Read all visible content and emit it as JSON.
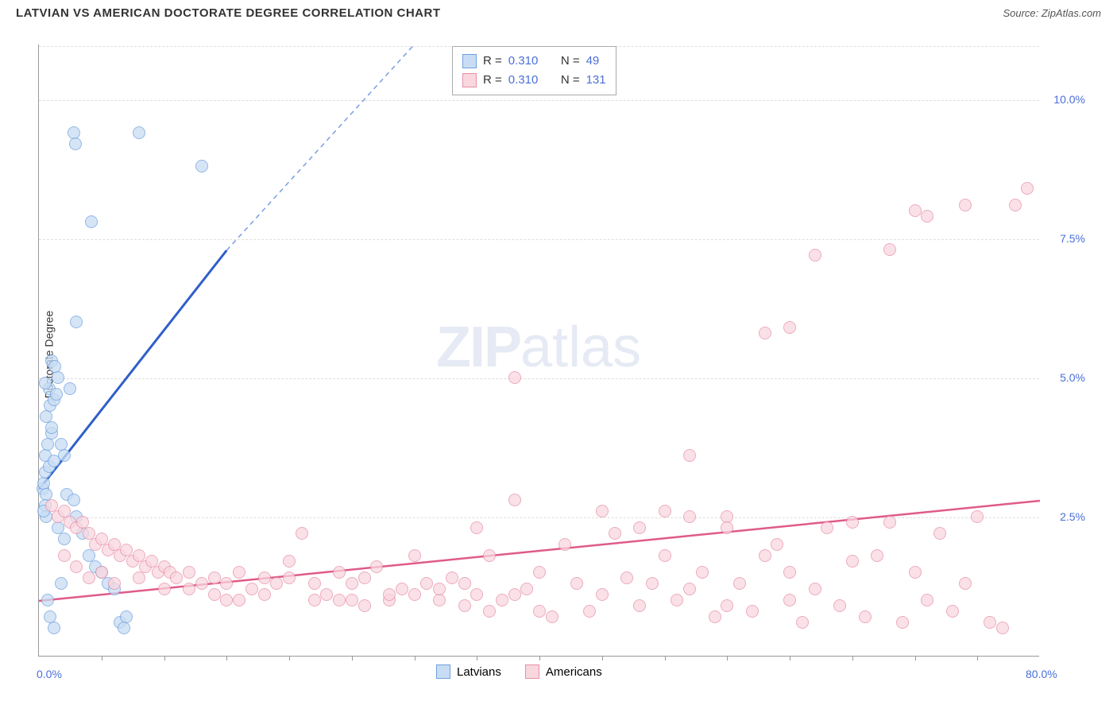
{
  "title": "LATVIAN VS AMERICAN DOCTORATE DEGREE CORRELATION CHART",
  "source": "Source: ZipAtlas.com",
  "watermark": "ZIPatlas",
  "chart": {
    "type": "scatter",
    "ylabel": "Doctorate Degree",
    "background_color": "#ffffff",
    "grid_color": "#dddddd",
    "x_axis": {
      "min": 0,
      "max": 80,
      "tick_start": 0,
      "tick_end": 80,
      "tick_step": 5,
      "label_min": "0.0%",
      "label_max": "80.0%"
    },
    "y_axis": {
      "min": 0,
      "max": 11,
      "ticks": [
        2.5,
        5.0,
        7.5,
        10.0
      ],
      "tick_labels": [
        "2.5%",
        "5.0%",
        "7.5%",
        "10.0%"
      ]
    },
    "series": [
      {
        "name": "Latvians",
        "marker_fill": "#c8ddf4",
        "marker_stroke": "#6fa0de",
        "marker_opacity": 0.75,
        "marker_radius": 8,
        "trend_color": "#2f5fc9",
        "trend_dash_color": "#7a9fe0",
        "trend": {
          "x1": 0,
          "y1": 3.0,
          "x2_solid": 15,
          "y2_solid": 7.3,
          "x2_dash": 30,
          "y2_dash": 11.0
        },
        "legend": {
          "R_label": "R =",
          "R": "0.310",
          "N_label": "N =",
          "N": "49"
        },
        "points": [
          [
            0.3,
            3.0
          ],
          [
            0.4,
            3.1
          ],
          [
            0.5,
            3.3
          ],
          [
            0.6,
            2.9
          ],
          [
            0.8,
            3.4
          ],
          [
            0.5,
            3.6
          ],
          [
            0.7,
            3.8
          ],
          [
            1.0,
            4.0
          ],
          [
            0.6,
            4.3
          ],
          [
            0.9,
            4.5
          ],
          [
            1.2,
            4.6
          ],
          [
            0.8,
            4.8
          ],
          [
            1.5,
            5.0
          ],
          [
            1.0,
            5.3
          ],
          [
            1.3,
            5.2
          ],
          [
            0.6,
            2.5
          ],
          [
            0.5,
            2.7
          ],
          [
            1.2,
            3.5
          ],
          [
            1.8,
            3.8
          ],
          [
            2.0,
            3.6
          ],
          [
            2.2,
            2.9
          ],
          [
            2.8,
            2.8
          ],
          [
            3.0,
            2.5
          ],
          [
            3.5,
            2.2
          ],
          [
            4.0,
            1.8
          ],
          [
            4.5,
            1.6
          ],
          [
            5.0,
            1.5
          ],
          [
            5.5,
            1.3
          ],
          [
            6.0,
            1.2
          ],
          [
            6.5,
            0.6
          ],
          [
            6.8,
            0.5
          ],
          [
            7.0,
            0.7
          ],
          [
            2.5,
            4.8
          ],
          [
            3.0,
            6.0
          ],
          [
            1.0,
            4.1
          ],
          [
            1.4,
            4.7
          ],
          [
            0.4,
            2.6
          ],
          [
            4.2,
            7.8
          ],
          [
            2.8,
            9.4
          ],
          [
            2.9,
            9.2
          ],
          [
            8.0,
            9.4
          ],
          [
            13.0,
            8.8
          ],
          [
            0.9,
            0.7
          ],
          [
            1.2,
            0.5
          ],
          [
            0.7,
            1.0
          ],
          [
            1.8,
            1.3
          ],
          [
            2.0,
            2.1
          ],
          [
            1.5,
            2.3
          ],
          [
            0.5,
            4.9
          ]
        ]
      },
      {
        "name": "Americans",
        "marker_fill": "#f9d7df",
        "marker_stroke": "#e68fa8",
        "marker_opacity": 0.75,
        "marker_radius": 8,
        "trend_color": "#e05a8a",
        "trend": {
          "x1": 0,
          "y1": 1.0,
          "x2": 80,
          "y2": 2.8
        },
        "legend": {
          "R_label": "R =",
          "R": "0.310",
          "N_label": "N =",
          "N": "131"
        },
        "points": [
          [
            1,
            2.7
          ],
          [
            1.5,
            2.5
          ],
          [
            2,
            2.6
          ],
          [
            2.5,
            2.4
          ],
          [
            3,
            2.3
          ],
          [
            3.5,
            2.4
          ],
          [
            4,
            2.2
          ],
          [
            4.5,
            2.0
          ],
          [
            5,
            2.1
          ],
          [
            5.5,
            1.9
          ],
          [
            6,
            2.0
          ],
          [
            6.5,
            1.8
          ],
          [
            7,
            1.9
          ],
          [
            7.5,
            1.7
          ],
          [
            8,
            1.8
          ],
          [
            8.5,
            1.6
          ],
          [
            9,
            1.7
          ],
          [
            9.5,
            1.5
          ],
          [
            10,
            1.6
          ],
          [
            10.5,
            1.5
          ],
          [
            11,
            1.4
          ],
          [
            12,
            1.5
          ],
          [
            13,
            1.3
          ],
          [
            14,
            1.4
          ],
          [
            15,
            1.3
          ],
          [
            16,
            1.5
          ],
          [
            17,
            1.2
          ],
          [
            18,
            1.4
          ],
          [
            19,
            1.3
          ],
          [
            20,
            1.4
          ],
          [
            21,
            2.2
          ],
          [
            22,
            1.0
          ],
          [
            23,
            1.1
          ],
          [
            24,
            1.5
          ],
          [
            25,
            1.3
          ],
          [
            26,
            1.4
          ],
          [
            27,
            1.6
          ],
          [
            28,
            1.0
          ],
          [
            29,
            1.2
          ],
          [
            30,
            1.1
          ],
          [
            31,
            1.3
          ],
          [
            32,
            1.0
          ],
          [
            33,
            1.4
          ],
          [
            34,
            0.9
          ],
          [
            35,
            1.1
          ],
          [
            36,
            1.8
          ],
          [
            37,
            1.0
          ],
          [
            38,
            2.8
          ],
          [
            39,
            1.2
          ],
          [
            40,
            1.5
          ],
          [
            41,
            0.7
          ],
          [
            42,
            2.0
          ],
          [
            43,
            1.3
          ],
          [
            44,
            0.8
          ],
          [
            45,
            1.1
          ],
          [
            46,
            2.2
          ],
          [
            47,
            1.4
          ],
          [
            48,
            0.9
          ],
          [
            49,
            1.3
          ],
          [
            50,
            2.6
          ],
          [
            51,
            1.0
          ],
          [
            52,
            2.5
          ],
          [
            53,
            1.5
          ],
          [
            54,
            0.7
          ],
          [
            55,
            2.5
          ],
          [
            56,
            1.3
          ],
          [
            57,
            0.8
          ],
          [
            58,
            1.8
          ],
          [
            59,
            2.0
          ],
          [
            60,
            1.5
          ],
          [
            61,
            0.6
          ],
          [
            62,
            1.2
          ],
          [
            63,
            2.3
          ],
          [
            64,
            0.9
          ],
          [
            65,
            1.7
          ],
          [
            66,
            0.7
          ],
          [
            67,
            1.8
          ],
          [
            68,
            2.4
          ],
          [
            69,
            0.6
          ],
          [
            70,
            1.5
          ],
          [
            71,
            1.0
          ],
          [
            72,
            2.2
          ],
          [
            73,
            0.8
          ],
          [
            74,
            1.3
          ],
          [
            75,
            2.5
          ],
          [
            76,
            0.6
          ],
          [
            77,
            0.5
          ],
          [
            38,
            5.0
          ],
          [
            52,
            3.6
          ],
          [
            55,
            2.3
          ],
          [
            58,
            5.8
          ],
          [
            60,
            5.9
          ],
          [
            62,
            7.2
          ],
          [
            60,
            1.0
          ],
          [
            45,
            2.6
          ],
          [
            40,
            0.8
          ],
          [
            50,
            1.8
          ],
          [
            55,
            0.9
          ],
          [
            48,
            2.3
          ],
          [
            52,
            1.2
          ],
          [
            68,
            7.3
          ],
          [
            70,
            8.0
          ],
          [
            71,
            7.9
          ],
          [
            74,
            8.1
          ],
          [
            78,
            8.1
          ],
          [
            79,
            8.4
          ],
          [
            35,
            2.3
          ],
          [
            30,
            1.8
          ],
          [
            25,
            1.0
          ],
          [
            20,
            1.7
          ],
          [
            15,
            1.0
          ],
          [
            10,
            1.2
          ],
          [
            5,
            1.5
          ],
          [
            2,
            1.8
          ],
          [
            3,
            1.6
          ],
          [
            4,
            1.4
          ],
          [
            6,
            1.3
          ],
          [
            8,
            1.4
          ],
          [
            12,
            1.2
          ],
          [
            14,
            1.1
          ],
          [
            16,
            1.0
          ],
          [
            18,
            1.1
          ],
          [
            22,
            1.3
          ],
          [
            24,
            1.0
          ],
          [
            26,
            0.9
          ],
          [
            28,
            1.1
          ],
          [
            32,
            1.2
          ],
          [
            34,
            1.3
          ],
          [
            36,
            0.8
          ],
          [
            38,
            1.1
          ],
          [
            65,
            2.4
          ]
        ]
      }
    ],
    "bottom_legend": [
      {
        "label": "Latvians",
        "fill": "#c8ddf4",
        "stroke": "#6fa0de"
      },
      {
        "label": "Americans",
        "fill": "#f9d7df",
        "stroke": "#e68fa8"
      }
    ]
  }
}
